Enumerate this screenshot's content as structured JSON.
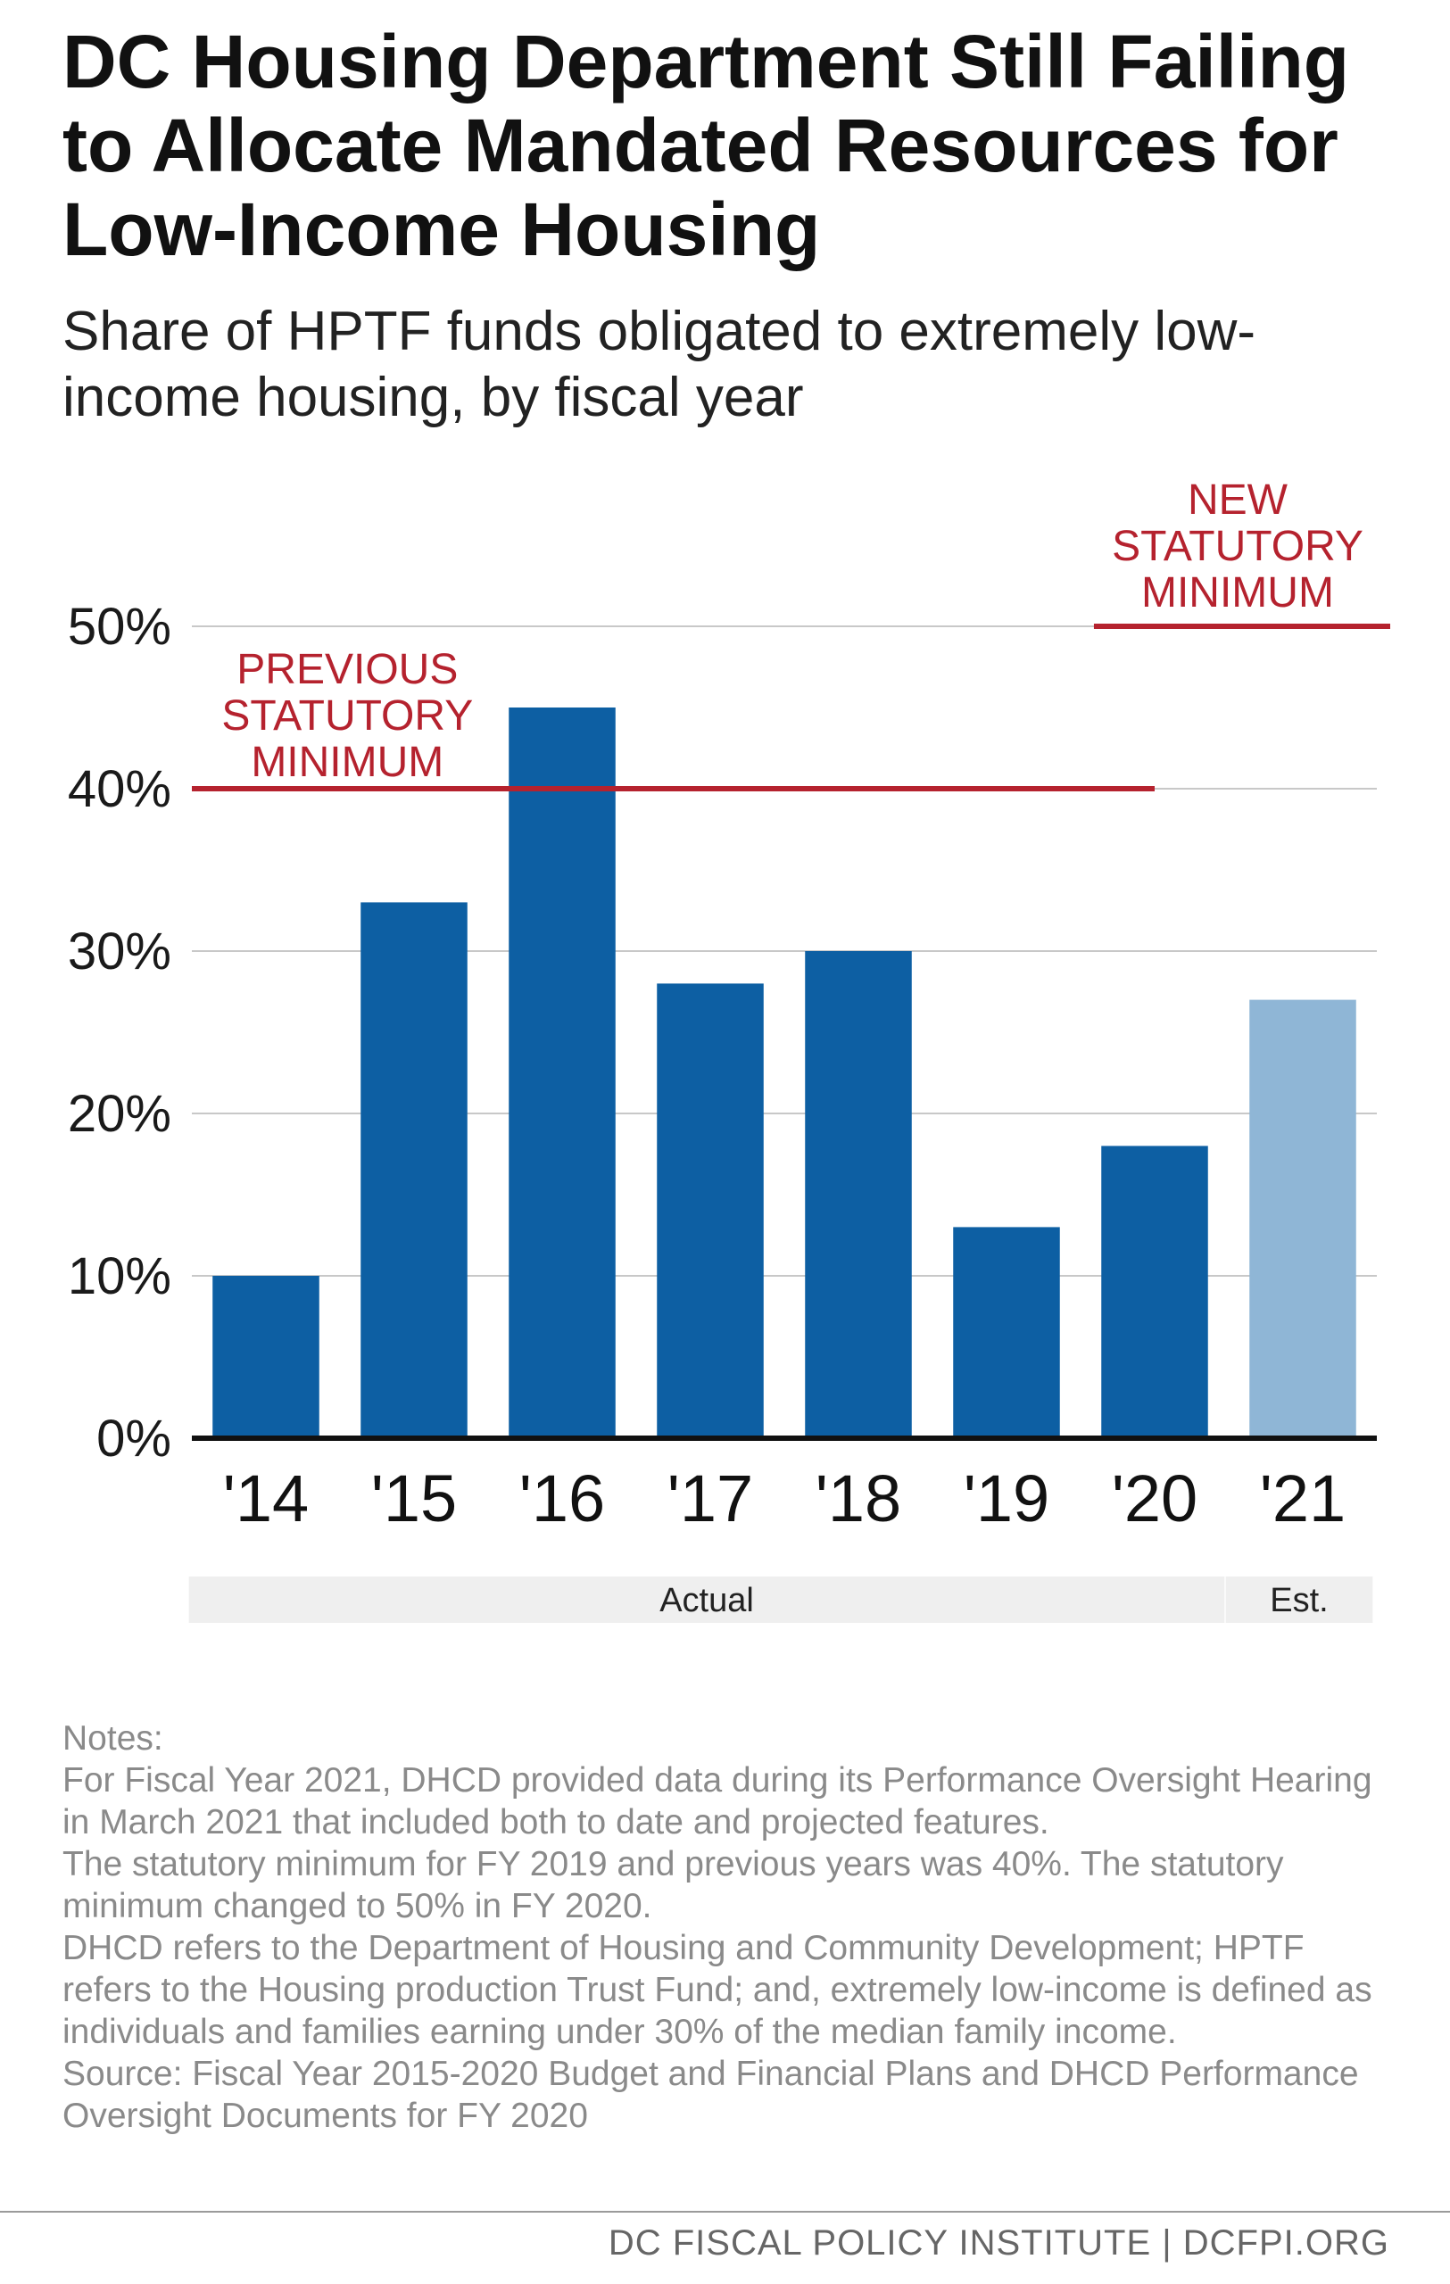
{
  "title": "DC Housing Department Still Failing to Allocate Mandated Resources for Low-Income Housing",
  "subtitle": "Share of HPTF funds obligated to extremely low-income housing, by fiscal year",
  "chart_data": {
    "type": "bar",
    "categories": [
      "'14",
      "'15",
      "'16",
      "'17",
      "'18",
      "'19",
      "'20",
      "'21"
    ],
    "values": [
      10,
      33,
      45,
      28,
      30,
      13,
      18,
      27
    ],
    "estimated": [
      false,
      false,
      false,
      false,
      false,
      false,
      false,
      true
    ],
    "ylim": [
      0,
      50
    ],
    "yticks": [
      0,
      10,
      20,
      30,
      40,
      50
    ],
    "ytick_labels": [
      "0%",
      "10%",
      "20%",
      "30%",
      "40%",
      "50%"
    ],
    "grid": true,
    "reference_lines": [
      {
        "label_lines": [
          "PREVIOUS",
          "STATUTORY",
          "MINIMUM"
        ],
        "value": 40,
        "from_category": "'14",
        "to_category": "'20"
      },
      {
        "label_lines": [
          "NEW",
          "STATUTORY",
          "MINIMUM"
        ],
        "value": 50,
        "from_category": "'20",
        "to_category": "'21"
      }
    ],
    "periods": [
      {
        "label": "Actual",
        "from_category": "'14",
        "to_category": "'20"
      },
      {
        "label": "Est.",
        "from_category": "'21",
        "to_category": "'21"
      }
    ],
    "colors": {
      "actual": "#0d5fa3",
      "estimate": "#8fb6d6",
      "minimum_line": "#b5222e",
      "gridline": "#c8c8c8",
      "axis": "#111111",
      "period_band": "#efefef"
    }
  },
  "notes": [
    "Notes:",
    "For Fiscal Year 2021, DHCD provided data during its Performance Oversight Hearing in March 2021 that included both to date and projected features.",
    "The statutory minimum for FY 2019 and previous years was 40%. The statutory minimum changed to 50% in FY 2020.",
    "DHCD refers to the Department of Housing and Community Development; HPTF refers to the Housing production Trust Fund; and, extremely low-income is defined as individuals and families earning under 30% of the median family income.",
    "Source: Fiscal Year 2015-2020 Budget and Financial Plans and DHCD Performance Oversight Documents for FY 2020"
  ],
  "footer": "DC FISCAL POLICY INSTITUTE | DCFPI.ORG"
}
